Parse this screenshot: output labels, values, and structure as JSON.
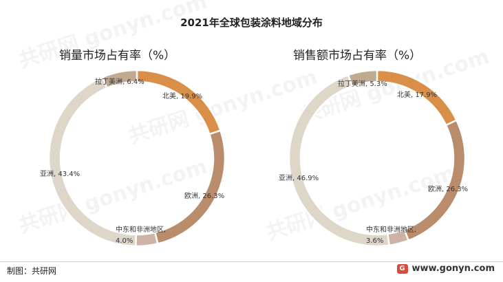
{
  "title": "2021年全球包装涂料地域分布",
  "watermark": "共研网 gonyn.com",
  "footer": {
    "source": "制图：共研网",
    "website": "www.gonyn.com",
    "logo_glyph": "G"
  },
  "colors": {
    "北美": "#DA8F48",
    "欧洲": "#B98D6B",
    "中东和非洲地区": "#CDB3A5",
    "亚洲": "#DED6C8",
    "拉丁美洲": "#C0AB92"
  },
  "chart_data": [
    {
      "type": "pie",
      "subtitle": "销量市场占有率（%）",
      "labels": [
        "北美",
        "欧洲",
        "中东和非洲地区",
        "亚洲",
        "拉丁美洲"
      ],
      "values": [
        19.9,
        26.3,
        4.0,
        43.4,
        6.4
      ],
      "label_text": [
        "北美, 19.9%",
        "欧洲, 26.3%",
        "中东和非洲地区, 4.0%",
        "亚洲, 43.4%",
        "拉丁美洲, 6.4%"
      ]
    },
    {
      "type": "pie",
      "subtitle": "销售额市场占有率（%）",
      "labels": [
        "北美",
        "欧洲",
        "中东和非洲地区",
        "亚洲",
        "拉丁美洲"
      ],
      "values": [
        17.9,
        26.3,
        3.6,
        46.9,
        5.3
      ],
      "label_text": [
        "北美, 17.9%",
        "欧洲, 26.3%",
        "中东和非洲地区, 3.6%",
        "亚洲, 46.9%",
        "拉丁美洲, 5.3%"
      ]
    }
  ]
}
